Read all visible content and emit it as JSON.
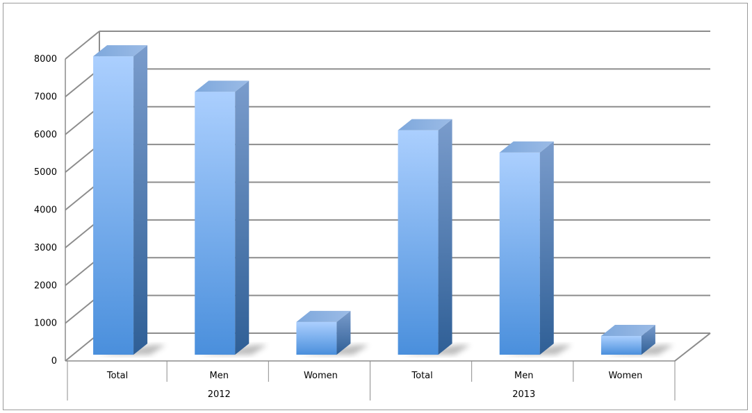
{
  "chart_data": {
    "type": "bar",
    "title": "",
    "xlabel": "",
    "ylabel": "",
    "ylim": [
      0,
      8000
    ],
    "yticks": [
      0,
      1000,
      2000,
      3000,
      4000,
      5000,
      6000,
      7000,
      8000
    ],
    "grid": true,
    "legend": "none",
    "categories": [
      "Total",
      "Men",
      "Women",
      "Total",
      "Men",
      "Women"
    ],
    "groups": [
      "2012",
      "2013"
    ],
    "values": [
      7980,
      7040,
      940,
      6020,
      5430,
      570
    ],
    "bar_color": "#5b9be6",
    "bar_color_light": "#a9cdfd",
    "bar_color_dark": "#3568a3"
  }
}
